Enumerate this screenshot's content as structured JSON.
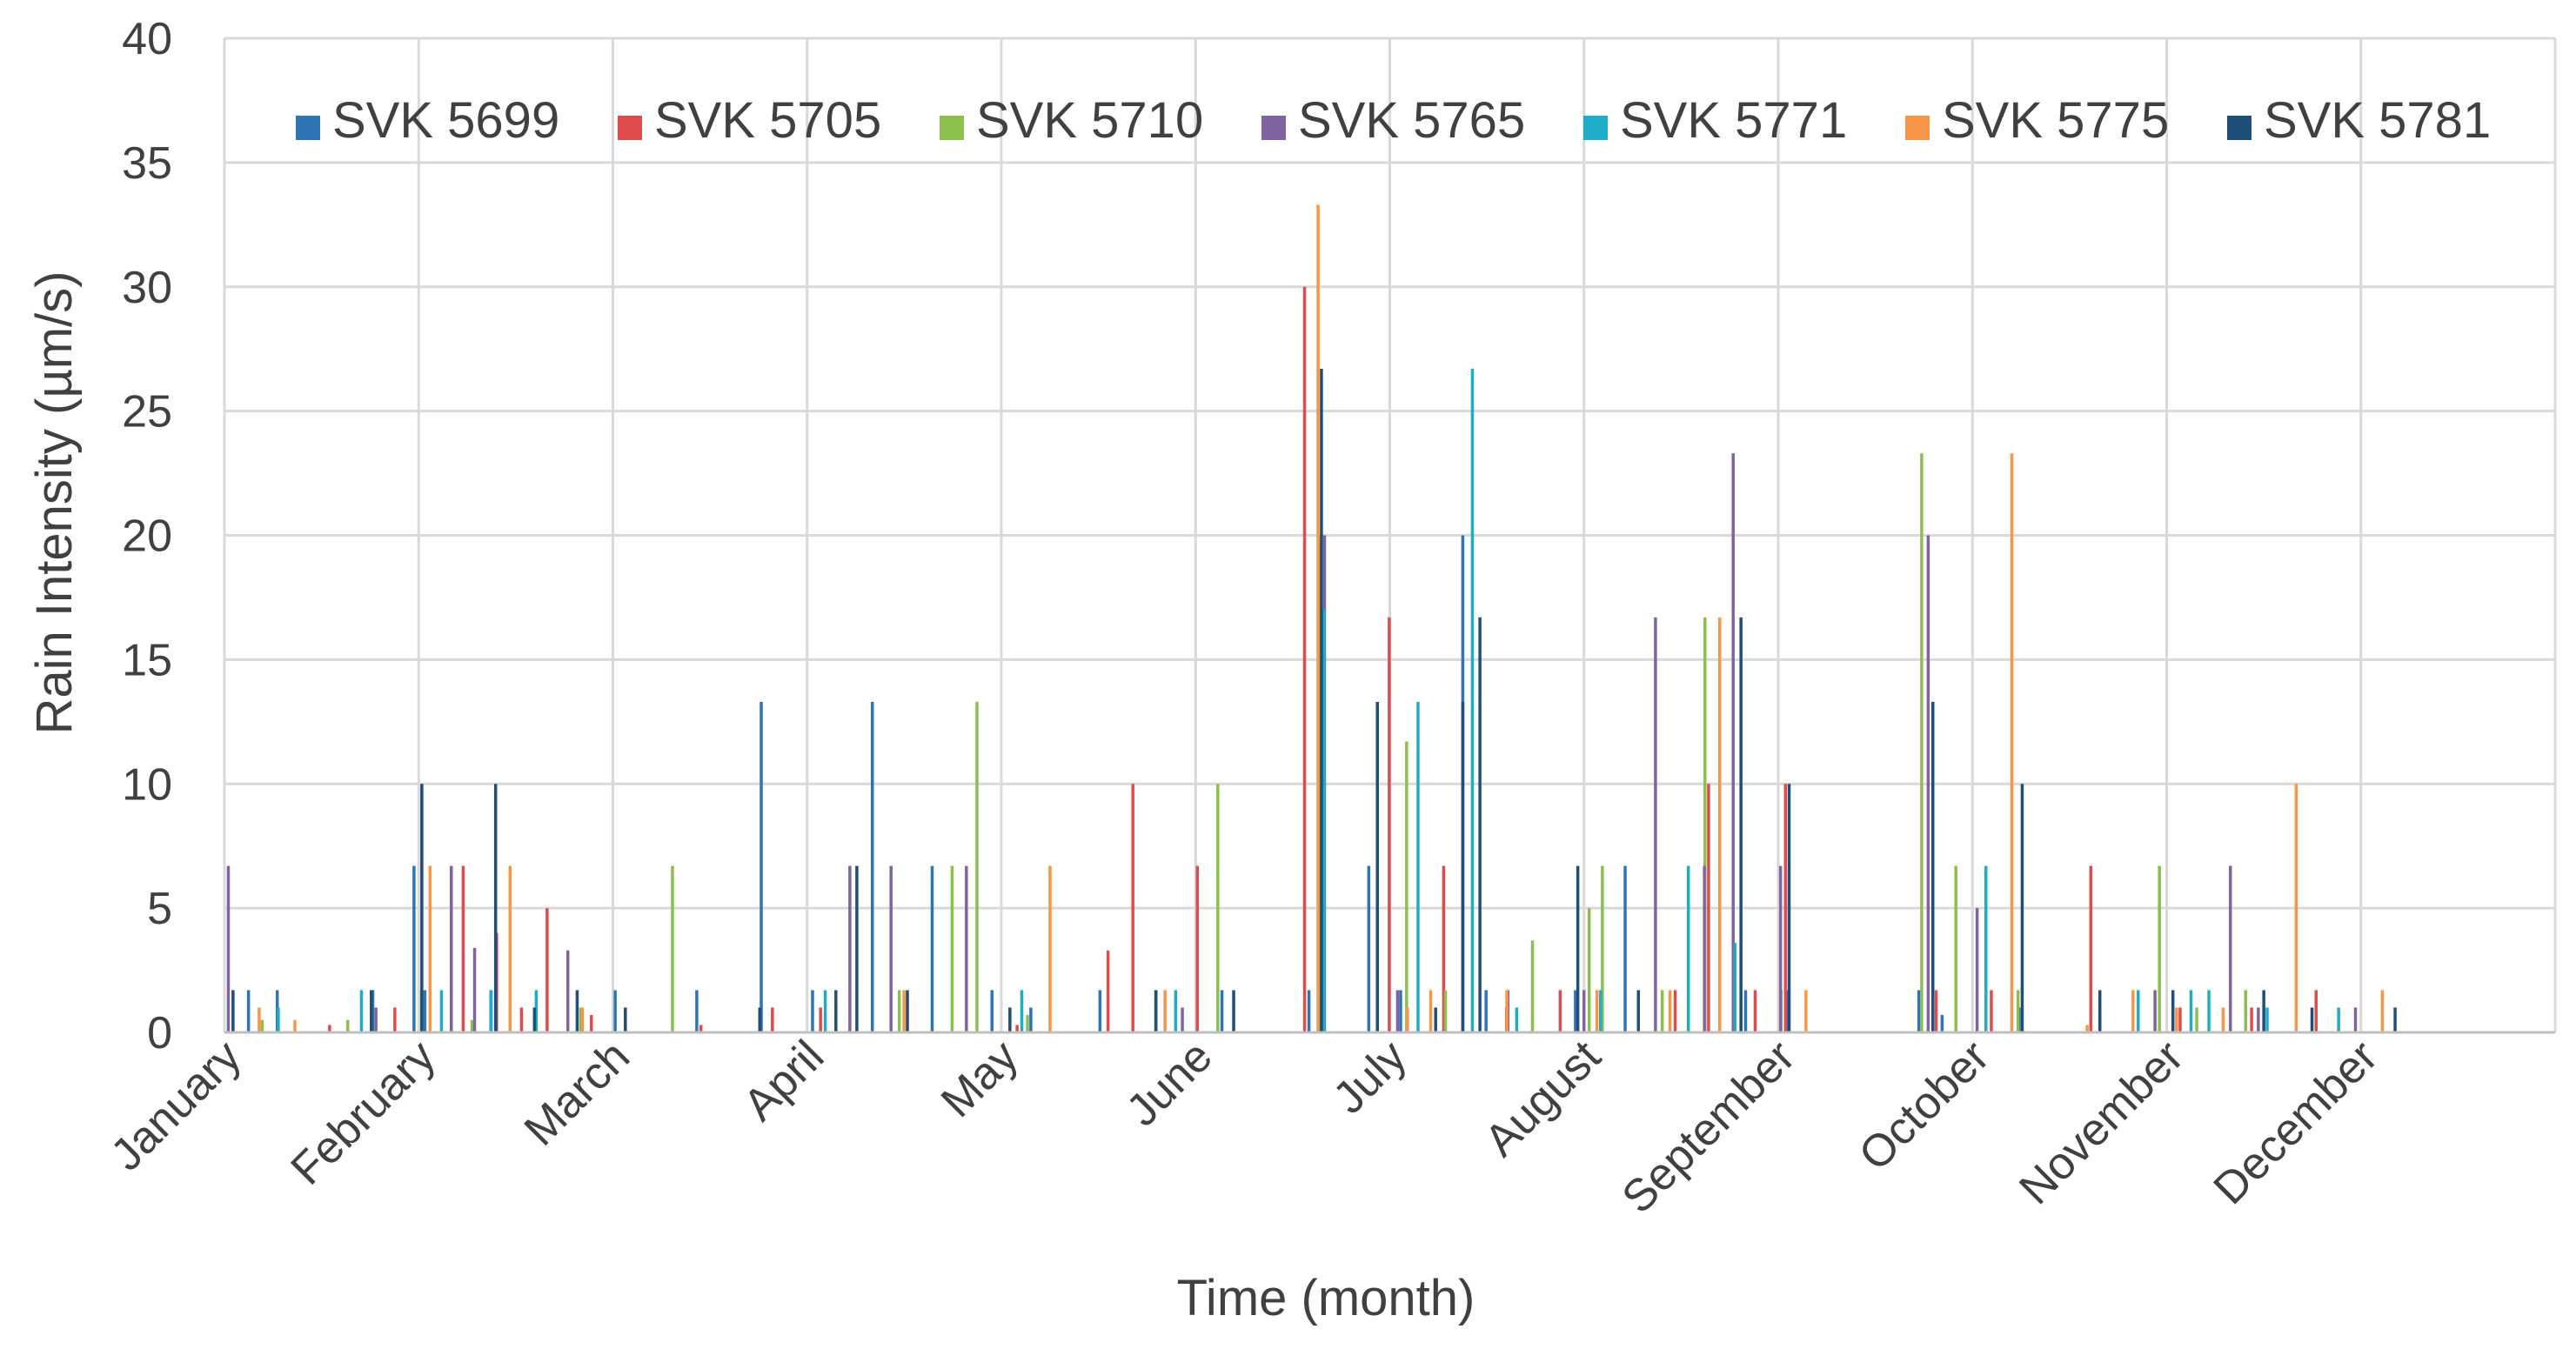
{
  "chart_data": {
    "type": "bar",
    "title": "",
    "xlabel": "Time (month)",
    "ylabel": "Rain Intensity (µm/s)",
    "ylim": [
      0,
      40
    ],
    "yticks": [
      0,
      5,
      10,
      15,
      20,
      25,
      30,
      35,
      40
    ],
    "grid": true,
    "legend_position": "top",
    "months": [
      "January",
      "February",
      "March",
      "April",
      "May",
      "June",
      "July",
      "August",
      "September",
      "October",
      "November",
      "December"
    ],
    "series": [
      {
        "name": "SVK 5699",
        "color": "#2E75B6",
        "points": [
          [
            0.35,
            1.7
          ],
          [
            0.72,
            1.7
          ],
          [
            1.95,
            1.7
          ],
          [
            2.48,
            6.7
          ],
          [
            2.62,
            1.7
          ],
          [
            3.47,
            1.7
          ],
          [
            5.07,
            1.7
          ],
          [
            6.12,
            1.7
          ],
          [
            6.95,
            13.3
          ],
          [
            7.61,
            1.7
          ],
          [
            8.38,
            13.3
          ],
          [
            9.15,
            6.7
          ],
          [
            9.92,
            1.7
          ],
          [
            10.42,
            1.0
          ],
          [
            11.31,
            1.7
          ],
          [
            12.88,
            1.7
          ],
          [
            14.0,
            1.7
          ],
          [
            14.77,
            6.7
          ],
          [
            15.18,
            1.7
          ],
          [
            15.98,
            20.0
          ],
          [
            16.28,
            1.7
          ],
          [
            17.43,
            1.7
          ],
          [
            18.07,
            6.7
          ],
          [
            19.62,
            1.7
          ],
          [
            20.16,
            1.7
          ],
          [
            21.85,
            1.7
          ],
          [
            22.15,
            0.7
          ],
          [
            23.14,
            1.0
          ]
        ]
      },
      {
        "name": "SVK 5705",
        "color": "#E04B4B",
        "points": [
          [
            1.38,
            0.3
          ],
          [
            2.22,
            1.0
          ],
          [
            3.1,
            6.7
          ],
          [
            3.53,
            4.0
          ],
          [
            3.85,
            1.0
          ],
          [
            4.18,
            5.0
          ],
          [
            4.75,
            0.7
          ],
          [
            6.16,
            0.3
          ],
          [
            7.08,
            1.0
          ],
          [
            7.7,
            1.0
          ],
          [
            10.23,
            0.3
          ],
          [
            11.4,
            3.3
          ],
          [
            11.72,
            10.0
          ],
          [
            12.55,
            6.7
          ],
          [
            13.93,
            30.0
          ],
          [
            15.02,
            16.7
          ],
          [
            15.72,
            6.7
          ],
          [
            16.53,
            1.0
          ],
          [
            17.22,
            1.7
          ],
          [
            18.7,
            1.7
          ],
          [
            19.13,
            10.0
          ],
          [
            19.73,
            1.7
          ],
          [
            20.12,
            10.0
          ],
          [
            22.06,
            1.7
          ],
          [
            22.77,
            1.7
          ],
          [
            24.05,
            6.7
          ],
          [
            25.2,
            1.0
          ],
          [
            26.12,
            1.0
          ],
          [
            26.95,
            1.7
          ]
        ]
      },
      {
        "name": "SVK 5710",
        "color": "#8DBF4E",
        "points": [
          [
            0.5,
            0.5
          ],
          [
            1.6,
            0.5
          ],
          [
            2.55,
            1.7
          ],
          [
            3.2,
            0.5
          ],
          [
            4.6,
            1.0
          ],
          [
            5.78,
            6.7
          ],
          [
            8.7,
            1.7
          ],
          [
            9.38,
            6.7
          ],
          [
            9.7,
            13.3
          ],
          [
            10.35,
            0.7
          ],
          [
            12.0,
            1.7
          ],
          [
            12.8,
            10.0
          ],
          [
            14.1,
            20.0
          ],
          [
            15.23,
            11.7
          ],
          [
            15.73,
            1.7
          ],
          [
            16.85,
            3.7
          ],
          [
            17.58,
            5.0
          ],
          [
            17.75,
            6.7
          ],
          [
            18.52,
            1.7
          ],
          [
            19.07,
            16.7
          ],
          [
            20.05,
            1.7
          ],
          [
            21.86,
            23.3
          ],
          [
            22.3,
            6.7
          ],
          [
            23.1,
            1.7
          ],
          [
            24.92,
            6.7
          ],
          [
            25.4,
            1.0
          ],
          [
            26.03,
            1.7
          ]
        ]
      },
      {
        "name": "SVK 5765",
        "color": "#8064A2",
        "points": [
          [
            0.05,
            6.7
          ],
          [
            1.95,
            1.0
          ],
          [
            2.92,
            6.7
          ],
          [
            3.22,
            3.4
          ],
          [
            4.42,
            3.3
          ],
          [
            8.05,
            6.7
          ],
          [
            8.58,
            6.7
          ],
          [
            9.55,
            6.7
          ],
          [
            12.33,
            1.0
          ],
          [
            14.16,
            20.0
          ],
          [
            15.1,
            1.7
          ],
          [
            16.52,
            1.7
          ],
          [
            17.5,
            1.7
          ],
          [
            18.42,
            16.7
          ],
          [
            19.05,
            6.7
          ],
          [
            19.42,
            23.3
          ],
          [
            20.03,
            6.7
          ],
          [
            21.93,
            20.0
          ],
          [
            22.56,
            5.0
          ],
          [
            24.14,
            1.0
          ],
          [
            24.85,
            1.7
          ],
          [
            25.82,
            6.7
          ],
          [
            26.18,
            1.0
          ],
          [
            27.43,
            1.0
          ]
        ]
      },
      {
        "name": "SVK 5771",
        "color": "#1FACC8",
        "points": [
          [
            0.68,
            1.0
          ],
          [
            1.75,
            1.7
          ],
          [
            2.78,
            1.7
          ],
          [
            3.42,
            1.7
          ],
          [
            4.0,
            1.7
          ],
          [
            7.72,
            1.7
          ],
          [
            10.25,
            1.7
          ],
          [
            12.23,
            1.7
          ],
          [
            14.14,
            17.0
          ],
          [
            15.35,
            13.3
          ],
          [
            16.05,
            26.7
          ],
          [
            16.62,
            1.0
          ],
          [
            17.7,
            1.7
          ],
          [
            18.83,
            6.7
          ],
          [
            19.43,
            3.6
          ],
          [
            22.66,
            6.7
          ],
          [
            24.62,
            1.7
          ],
          [
            25.3,
            1.7
          ],
          [
            25.53,
            1.7
          ],
          [
            26.28,
            1.0
          ],
          [
            27.2,
            1.0
          ]
        ]
      },
      {
        "name": "SVK 5775",
        "color": "#F79646",
        "points": [
          [
            0.42,
            1.0
          ],
          [
            0.88,
            0.5
          ],
          [
            2.62,
            6.7
          ],
          [
            3.65,
            6.7
          ],
          [
            4.58,
            1.0
          ],
          [
            8.72,
            1.7
          ],
          [
            10.6,
            6.7
          ],
          [
            12.08,
            1.7
          ],
          [
            14.05,
            33.3
          ],
          [
            15.2,
            1.0
          ],
          [
            15.5,
            1.7
          ],
          [
            16.48,
            1.7
          ],
          [
            17.64,
            1.7
          ],
          [
            18.58,
            1.7
          ],
          [
            19.22,
            16.7
          ],
          [
            20.33,
            1.7
          ],
          [
            22.98,
            23.3
          ],
          [
            23.95,
            0.3
          ],
          [
            24.54,
            1.7
          ],
          [
            25.1,
            1.0
          ],
          [
            25.7,
            1.0
          ],
          [
            26.64,
            10.0
          ],
          [
            27.75,
            1.7
          ]
        ]
      },
      {
        "name": "SVK 5781",
        "color": "#1F4E79",
        "points": [
          [
            0.07,
            1.7
          ],
          [
            1.85,
            1.7
          ],
          [
            2.5,
            10.0
          ],
          [
            3.45,
            10.0
          ],
          [
            3.95,
            1.0
          ],
          [
            4.5,
            1.7
          ],
          [
            5.12,
            1.0
          ],
          [
            6.85,
            1.0
          ],
          [
            7.83,
            1.7
          ],
          [
            8.1,
            6.7
          ],
          [
            8.75,
            1.7
          ],
          [
            10.07,
            1.0
          ],
          [
            11.95,
            1.7
          ],
          [
            12.95,
            1.7
          ],
          [
            14.08,
            26.7
          ],
          [
            14.8,
            13.3
          ],
          [
            15.55,
            1.0
          ],
          [
            15.9,
            13.3
          ],
          [
            16.12,
            16.7
          ],
          [
            17.38,
            6.7
          ],
          [
            18.16,
            1.7
          ],
          [
            19.48,
            16.7
          ],
          [
            20.1,
            10.0
          ],
          [
            21.95,
            13.3
          ],
          [
            23.1,
            10.0
          ],
          [
            24.1,
            1.7
          ],
          [
            25.04,
            1.7
          ],
          [
            26.21,
            1.7
          ],
          [
            26.83,
            1.0
          ],
          [
            27.9,
            1.0
          ]
        ]
      }
    ]
  }
}
